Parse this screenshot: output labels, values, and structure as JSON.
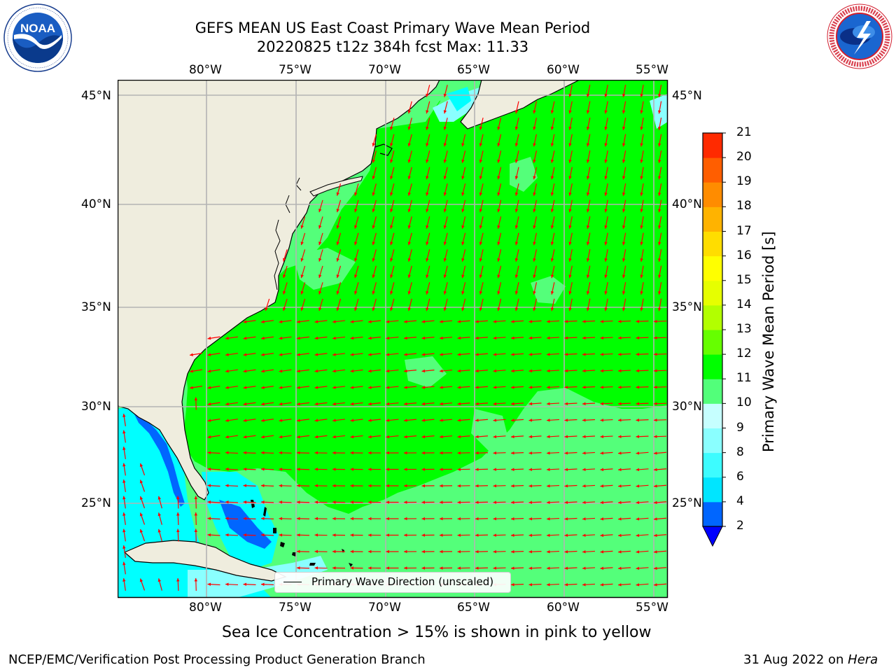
{
  "title": {
    "line1": "GEFS MEAN US East Coast Primary Wave Mean Period",
    "line2": "20220825 t12z 384h fcst   Max: 11.33"
  },
  "logos": {
    "left": {
      "name": "NOAA",
      "text": "NOAA",
      "ring_text": "NATIONAL OCEANIC AND ATMOSPHERIC ADMINISTRATION · U.S. DEPARTMENT OF COMMERCE"
    },
    "right": {
      "name": "National Weather Service",
      "ring_text": "NATIONAL WEATHER SERVICE"
    }
  },
  "map": {
    "lon_ticks": [
      "80°W",
      "75°W",
      "70°W",
      "65°W",
      "60°W",
      "55°W"
    ],
    "lat_ticks": [
      "45°N",
      "40°N",
      "35°N",
      "30°N",
      "25°N"
    ],
    "lon_values": [
      -80,
      -75,
      -70,
      -65,
      -60,
      -55
    ],
    "lat_values": [
      45,
      40,
      35,
      30,
      25
    ],
    "lon_range": [
      -85,
      -54.3
    ],
    "lat_range": [
      20.5,
      45.8
    ],
    "legend_label": "Primary Wave Direction (unscaled)",
    "colors": {
      "land": "#efedde",
      "ocean_main": "#00ff00",
      "ocean_low": "#54ff7a",
      "shallow": "#00ffff",
      "arrow": "#ff0000",
      "grid": "#b3b3b3"
    }
  },
  "colorbar": {
    "label": "Primary Wave Mean Period [s]",
    "ticks": [
      "2",
      "4",
      "6",
      "8",
      "9",
      "10",
      "11",
      "12",
      "13",
      "14",
      "15",
      "16",
      "17",
      "18",
      "19",
      "20",
      "21"
    ],
    "colors": [
      "#0066ff",
      "#00e5ff",
      "#3dfcff",
      "#8affff",
      "#c6ffff",
      "#52ff7a",
      "#00ff00",
      "#66ff00",
      "#b2ff00",
      "#e6ff00",
      "#ffff00",
      "#ffdd00",
      "#ffb300",
      "#ff8c00",
      "#ff5e00",
      "#ff2a00",
      "#ff0000"
    ],
    "extend": "min",
    "extend_color": "#0000ff"
  },
  "caption": "Sea Ice Concentration > 15% is shown in pink to yellow",
  "footer": {
    "left": "NCEP/EMC/Verification Post Processing Product Generation Branch",
    "date": "31 Aug 2022 on ",
    "machine": "Hera"
  }
}
